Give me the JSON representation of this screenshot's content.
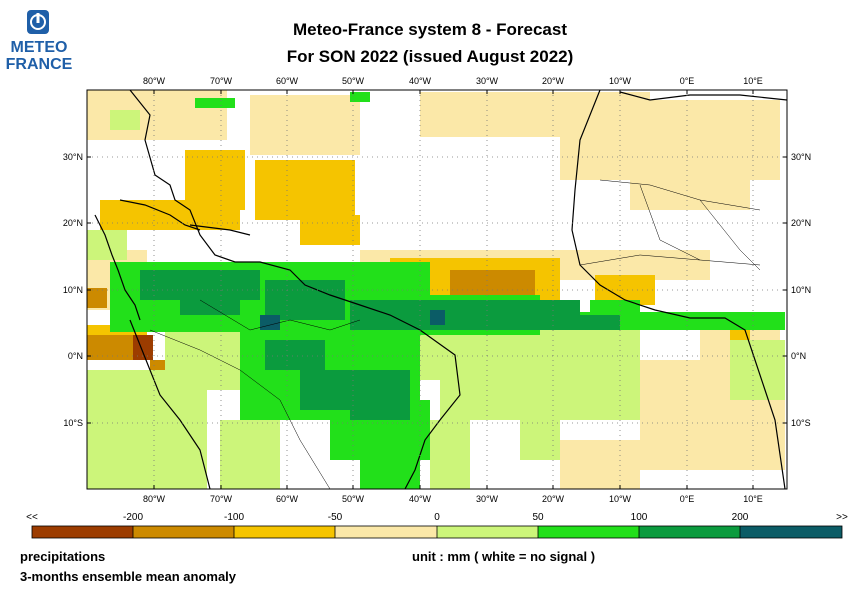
{
  "logo": {
    "line1": "METEO",
    "line2": "FRANCE"
  },
  "title": {
    "line1": "Meteo-France system 8  -  Forecast",
    "line2": "For SON 2022      (issued August 2022)"
  },
  "axes": {
    "lon_labels": [
      "80°W",
      "70°W",
      "60°W",
      "50°W",
      "40°W",
      "30°W",
      "20°W",
      "10°W",
      "0°E",
      "10°E"
    ],
    "lat_labels": [
      "30°N",
      "20°N",
      "10°N",
      "0°N",
      "10°S"
    ]
  },
  "legend": {
    "ticks": [
      "<<",
      "-200",
      "-100",
      "-50",
      "0",
      "50",
      "100",
      "200",
      ">>"
    ],
    "colors": [
      "#9c3c00",
      "#cc8a00",
      "#f5c400",
      "#fbe8a8",
      "#ccf57a",
      "#22e01a",
      "#0b9b3e",
      "#0b5c66"
    ]
  },
  "footer": {
    "variable": "precipitations",
    "unit": "unit : mm  ( white = no signal )",
    "description": "3-months ensemble mean anomaly"
  }
}
